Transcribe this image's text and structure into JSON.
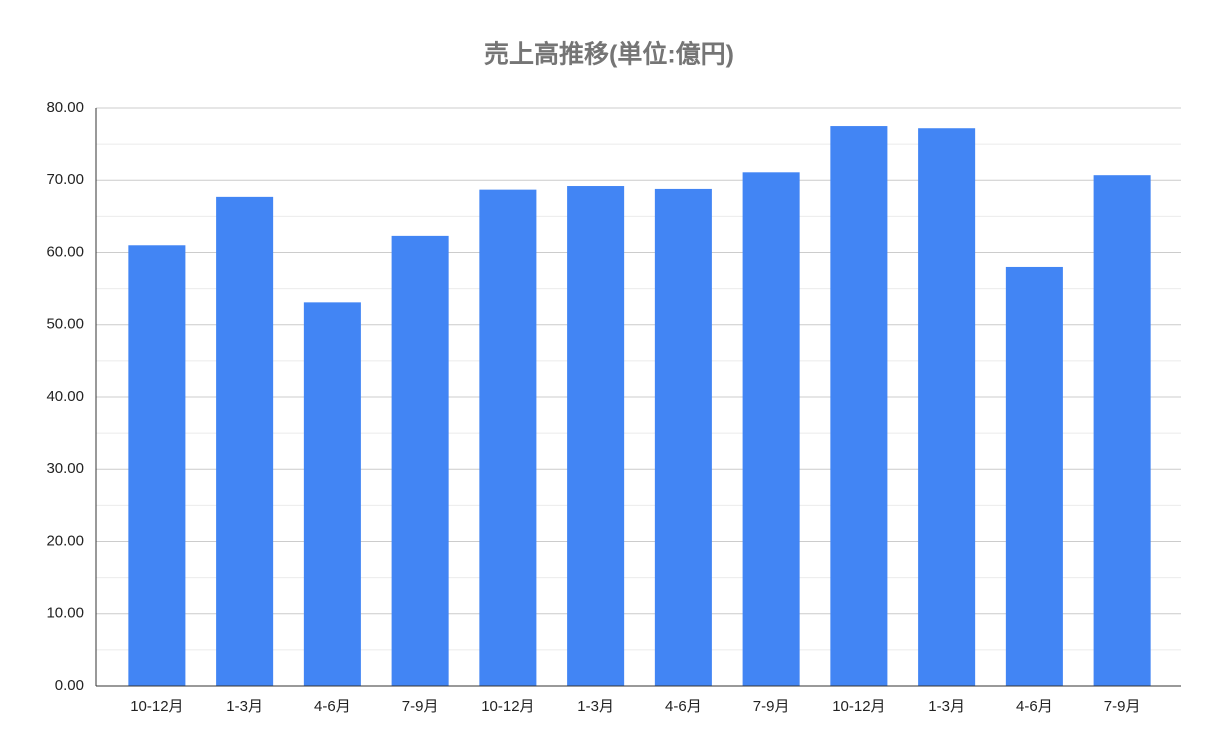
{
  "chart_data": {
    "type": "bar",
    "title": "売上高推移(単位:億円)",
    "categories": [
      "10-12月",
      "1-3月",
      "4-6月",
      "7-9月",
      "10-12月",
      "1-3月",
      "4-6月",
      "7-9月",
      "10-12月",
      "1-3月",
      "4-6月",
      "7-9月"
    ],
    "values": [
      61.0,
      67.7,
      53.1,
      62.3,
      68.7,
      69.2,
      68.8,
      71.1,
      77.5,
      77.2,
      58.0,
      70.7
    ],
    "color": "#4285f4",
    "ylim": [
      0,
      80
    ],
    "yticks": [
      {
        "value": 0,
        "label": "0.00"
      },
      {
        "value": 10,
        "label": "10.00"
      },
      {
        "value": 20,
        "label": "20.00"
      },
      {
        "value": 30,
        "label": "30.00"
      },
      {
        "value": 40,
        "label": "40.00"
      },
      {
        "value": 50,
        "label": "50.00"
      },
      {
        "value": 60,
        "label": "60.00"
      },
      {
        "value": 70,
        "label": "70.00"
      },
      {
        "value": 80,
        "label": "80.00"
      }
    ],
    "minor_yticks": [
      5,
      15,
      25,
      35,
      45,
      55,
      65,
      75
    ],
    "grid": true
  }
}
